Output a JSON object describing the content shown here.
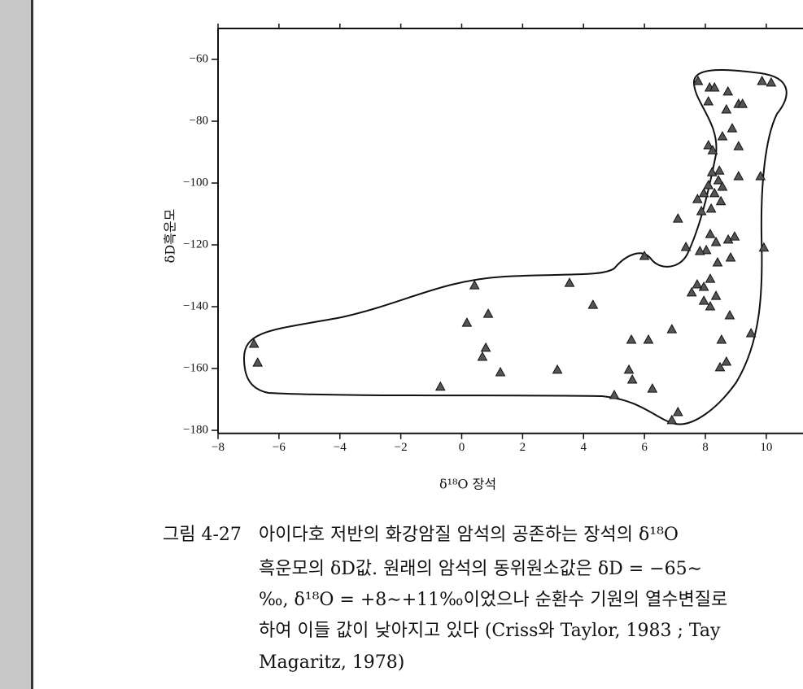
{
  "chart_data": {
    "type": "scatter",
    "xlabel": "δ¹⁸O 장석",
    "ylabel": "δD흑운모",
    "xlim": [
      -8,
      11.2
    ],
    "ylim": [
      -181,
      -50
    ],
    "xticks": [
      {
        "value": -8,
        "label": "−8"
      },
      {
        "value": -6,
        "label": "−6"
      },
      {
        "value": -4,
        "label": "−4"
      },
      {
        "value": -2,
        "label": "−2"
      },
      0,
      2,
      4,
      6,
      8,
      10
    ],
    "yticks": [
      {
        "value": -60,
        "label": "−60"
      },
      {
        "value": -80,
        "label": "−80"
      },
      {
        "value": -100,
        "label": "−100"
      },
      {
        "value": -120,
        "label": "−120"
      },
      {
        "value": -140,
        "label": "−140"
      },
      {
        "value": -160,
        "label": "−160"
      },
      {
        "value": -180,
        "label": "−180"
      }
    ],
    "color": "#555555",
    "x": [
      -6.82,
      -6.7,
      -0.7,
      0.17,
      0.42,
      0.87,
      0.79,
      0.68,
      1.27,
      3.14,
      3.54,
      4.31,
      5.01,
      5.57,
      5.49,
      5.6,
      6.13,
      6.26,
      6.0,
      6.9,
      7.1,
      6.9,
      7.1,
      7.36,
      7.55,
      7.95,
      8.16,
      7.73,
      8.35,
      8.16,
      7.95,
      7.76,
      8.14,
      8.3,
      8.1,
      8.74,
      8.69,
      9.09,
      9.22,
      9.86,
      10.16,
      8.88,
      8.56,
      8.1,
      8.24,
      9.09,
      8.46,
      8.22,
      8.43,
      8.1,
      7.95,
      7.74,
      8.3,
      8.51,
      7.87,
      8.19,
      8.56,
      9.09,
      8.16,
      8.35,
      8.03,
      8.75,
      8.96,
      7.82,
      8.4,
      8.83,
      9.92,
      9.81,
      8.8,
      8.53,
      8.69,
      8.48,
      9.5
    ],
    "values": [
      -152.1,
      -158.2,
      -166,
      -145.3,
      -133.2,
      -142.4,
      -153.4,
      -156.3,
      -161.3,
      -160.5,
      -132.4,
      -139.5,
      -168.7,
      -150.8,
      -160.5,
      -163.7,
      -150.8,
      -166.6,
      -123.7,
      -176.8,
      -174.2,
      -147.4,
      -111.6,
      -120.8,
      -135.5,
      -133.7,
      -131.1,
      -132.9,
      -136.6,
      -140,
      -138.2,
      -67.1,
      -69.2,
      -69.2,
      -73.7,
      -70.5,
      -76.3,
      -74.5,
      -74.5,
      -67.1,
      -67.6,
      -82.4,
      -85,
      -87.9,
      -89.5,
      -88.2,
      -96.1,
      -96.6,
      -99.2,
      -100.8,
      -103.4,
      -105.3,
      -103.4,
      -106,
      -109.2,
      -108.4,
      -101.3,
      -97.9,
      -116.6,
      -119.2,
      -121.8,
      -118.4,
      -117.4,
      -122.1,
      -125.8,
      -124.2,
      -121,
      -97.9,
      -142.9,
      -150.8,
      -157.9,
      -159.7,
      -148.7
    ],
    "caption_label": "그림 4-27",
    "caption_lines": [
      "아이다호 저반의 화강암질 암석의 공존하는 장석의 δ¹⁸O",
      "흑운모의 δD값. 원래의 암석의 동위원소값은 δD = −65∼",
      "‰, δ¹⁸O = +8∼+11‰이었으나 순환수 기원의 열수변질로",
      "하여 이들 값이 낮아지고 있다 (Criss와 Taylor, 1983 ; Tay",
      "Magaritz, 1978)"
    ]
  }
}
